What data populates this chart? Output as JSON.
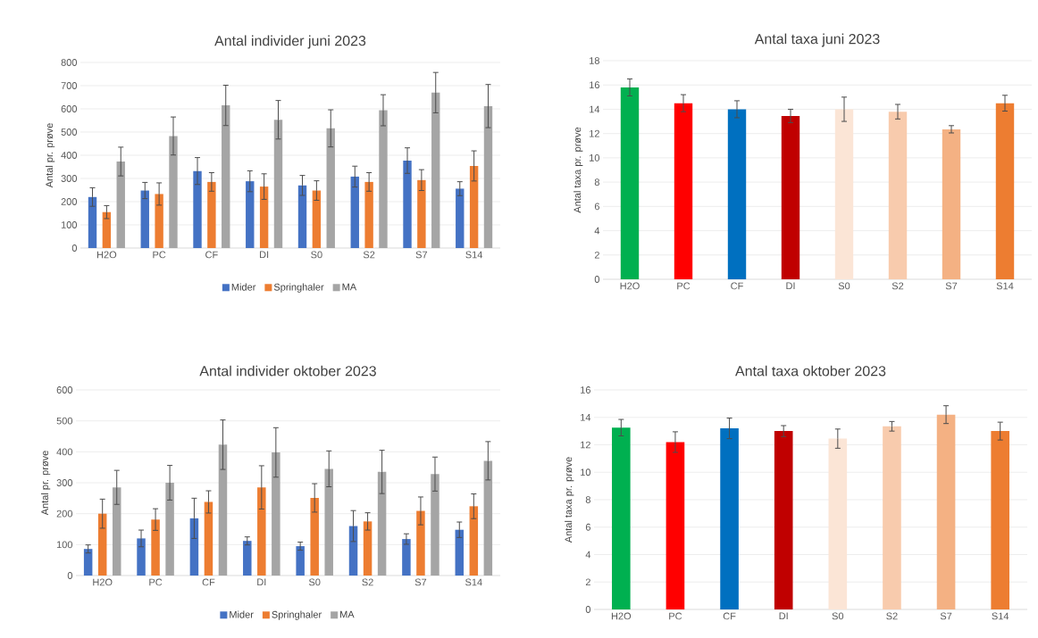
{
  "chart_data": [
    {
      "type": "bar",
      "title": "Antal individer juni 2023",
      "ylabel": "Antal pr. prøve",
      "categories": [
        "H2O",
        "PC",
        "CF",
        "DI",
        "S0",
        "S2",
        "S7",
        "S14"
      ],
      "ylim": [
        0,
        800
      ],
      "yticks": [
        0,
        100,
        200,
        300,
        400,
        500,
        600,
        700,
        800
      ],
      "grid": "y",
      "legend": "bottom",
      "series": [
        {
          "name": "Mider",
          "color": "#4472c4",
          "values": [
            220,
            248,
            332,
            288,
            270,
            308,
            377,
            256
          ],
          "errors": [
            40,
            35,
            58,
            45,
            43,
            45,
            55,
            30
          ]
        },
        {
          "name": "Springhaler",
          "color": "#ed7d31",
          "values": [
            155,
            233,
            285,
            265,
            248,
            285,
            293,
            354
          ],
          "errors": [
            28,
            48,
            40,
            55,
            42,
            40,
            45,
            65
          ]
        },
        {
          "name": "MA",
          "color": "#a5a5a5",
          "values": [
            373,
            483,
            615,
            553,
            516,
            594,
            670,
            612
          ],
          "errors": [
            62,
            82,
            87,
            83,
            80,
            67,
            87,
            93
          ]
        }
      ]
    },
    {
      "type": "bar",
      "title": "Antal taxa juni 2023",
      "ylabel": "Antal taxa pr. prøve",
      "categories": [
        "H2O",
        "PC",
        "CF",
        "DI",
        "S0",
        "S2",
        "S7",
        "S14"
      ],
      "ylim": [
        0,
        18
      ],
      "yticks": [
        0,
        2,
        4,
        6,
        8,
        10,
        12,
        14,
        16,
        18
      ],
      "grid": "y",
      "values": [
        15.8,
        14.5,
        14.0,
        13.45,
        14.0,
        13.8,
        12.35,
        14.5
      ],
      "errors": [
        0.7,
        0.7,
        0.7,
        0.55,
        1.0,
        0.6,
        0.3,
        0.65
      ],
      "colors": [
        "#00b050",
        "#ff0000",
        "#0070c0",
        "#c00000",
        "#fbe5d6",
        "#f8cbad",
        "#f4b183",
        "#ed7d31"
      ]
    },
    {
      "type": "bar",
      "title": "Antal individer oktober 2023",
      "ylabel": "Antal pr. prøve",
      "categories": [
        "H2O",
        "PC",
        "CF",
        "DI",
        "S0",
        "S2",
        "S7",
        "S14"
      ],
      "ylim": [
        0,
        600
      ],
      "yticks": [
        0,
        100,
        200,
        300,
        400,
        500,
        600
      ],
      "grid": "y",
      "legend": "bottom",
      "series": [
        {
          "name": "Mider",
          "color": "#4472c4",
          "values": [
            86,
            120,
            185,
            112,
            95,
            160,
            118,
            148
          ],
          "errors": [
            13,
            27,
            65,
            13,
            13,
            50,
            17,
            25
          ]
        },
        {
          "name": "Springhaler",
          "color": "#ed7d31",
          "values": [
            200,
            181,
            238,
            285,
            251,
            175,
            209,
            224
          ],
          "errors": [
            47,
            35,
            36,
            70,
            46,
            28,
            45,
            40
          ]
        },
        {
          "name": "MA",
          "color": "#a5a5a5",
          "values": [
            285,
            300,
            423,
            398,
            345,
            335,
            328,
            371
          ],
          "errors": [
            55,
            56,
            80,
            80,
            58,
            70,
            55,
            62
          ]
        }
      ]
    },
    {
      "type": "bar",
      "title": "Antal taxa oktober 2023",
      "ylabel": "Antal taxa pr. prøve",
      "categories": [
        "H2O",
        "PC",
        "CF",
        "DI",
        "S0",
        "S2",
        "S7",
        "S14"
      ],
      "ylim": [
        0,
        16
      ],
      "yticks": [
        0,
        2,
        4,
        6,
        8,
        10,
        12,
        14,
        16
      ],
      "grid": "y",
      "values": [
        13.25,
        12.2,
        13.2,
        13.0,
        12.45,
        13.35,
        14.2,
        13.0
      ],
      "errors": [
        0.6,
        0.75,
        0.75,
        0.4,
        0.7,
        0.35,
        0.65,
        0.65
      ],
      "colors": [
        "#00b050",
        "#ff0000",
        "#0070c0",
        "#c00000",
        "#fbe5d6",
        "#f8cbad",
        "#f4b183",
        "#ed7d31"
      ]
    }
  ]
}
